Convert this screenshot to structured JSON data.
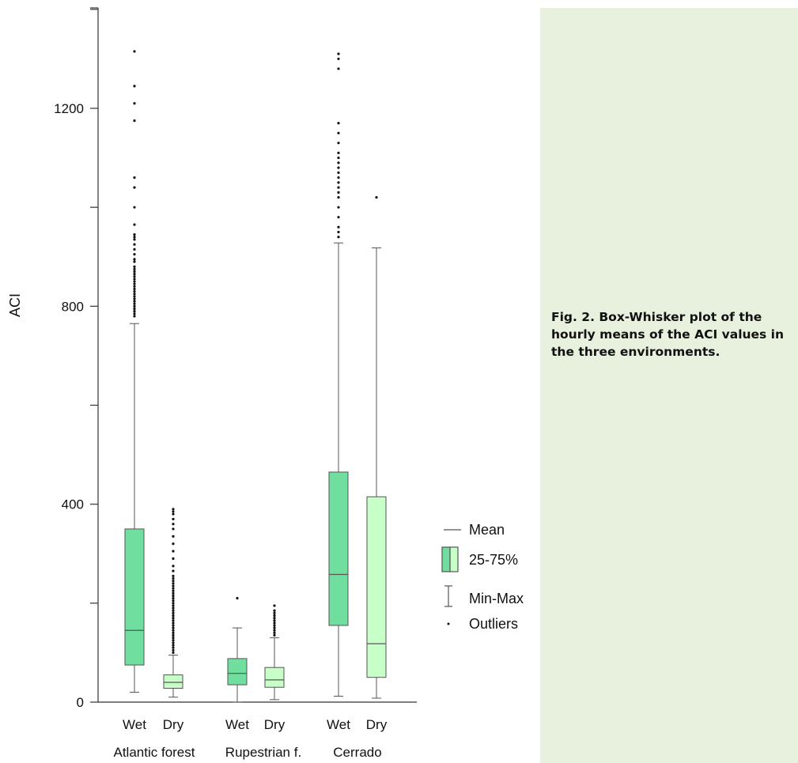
{
  "caption": "Fig. 2. Box-Whisker plot of the hourly means of the ACI values in the three environments.",
  "chart_data": {
    "type": "box",
    "ylabel": "ACI",
    "ylim": [
      0,
      1400
    ],
    "yticks": [
      0,
      400,
      800,
      1200
    ],
    "groups": [
      "Atlantic forest",
      "Rupestrian f.",
      "Cerrado"
    ],
    "season_labels": [
      "Wet",
      "Dry",
      "Wet",
      "Dry",
      "Wet",
      "Dry"
    ],
    "colors": {
      "wet_fill": "#6fde9f",
      "dry_fill": "#c8ffc8",
      "stroke": "#555555",
      "outlier": "#111111"
    },
    "boxes": [
      {
        "group": "Atlantic forest",
        "season": "Wet",
        "min": 20,
        "q1": 75,
        "mean": 145,
        "q3": 350,
        "max": 765,
        "outliers": [
          780,
          785,
          790,
          795,
          800,
          805,
          810,
          815,
          820,
          825,
          830,
          835,
          840,
          845,
          850,
          855,
          860,
          865,
          870,
          875,
          880,
          890,
          895,
          905,
          915,
          925,
          935,
          940,
          945,
          965,
          1000,
          1040,
          1060,
          1175,
          1210,
          1245,
          1315
        ]
      },
      {
        "group": "Atlantic forest",
        "season": "Dry",
        "min": 10,
        "q1": 28,
        "mean": 40,
        "q3": 55,
        "max": 95,
        "outliers": [
          100,
          105,
          110,
          115,
          120,
          125,
          130,
          135,
          140,
          145,
          150,
          155,
          160,
          165,
          170,
          175,
          180,
          185,
          190,
          195,
          200,
          205,
          210,
          215,
          220,
          225,
          230,
          235,
          240,
          245,
          250,
          255,
          265,
          275,
          290,
          305,
          320,
          335,
          350,
          360,
          370,
          380,
          385,
          390
        ]
      },
      {
        "group": "Rupestrian f.",
        "season": "Wet",
        "min": 0,
        "q1": 35,
        "mean": 58,
        "q3": 88,
        "max": 150,
        "outliers": [
          210
        ]
      },
      {
        "group": "Rupestrian f.",
        "season": "Dry",
        "min": 5,
        "q1": 30,
        "mean": 45,
        "q3": 70,
        "max": 130,
        "outliers": [
          135,
          140,
          145,
          150,
          155,
          160,
          165,
          170,
          175,
          180,
          185,
          195
        ]
      },
      {
        "group": "Cerrado",
        "season": "Wet",
        "min": 12,
        "q1": 155,
        "mean": 258,
        "q3": 465,
        "max": 928,
        "outliers": [
          940,
          950,
          960,
          980,
          1000,
          1020,
          1030,
          1040,
          1050,
          1060,
          1070,
          1080,
          1090,
          1100,
          1110,
          1130,
          1150,
          1170,
          1280,
          1300,
          1310
        ]
      },
      {
        "group": "Cerrado",
        "season": "Dry",
        "min": 8,
        "q1": 50,
        "mean": 118,
        "q3": 415,
        "max": 918,
        "outliers": [
          1020
        ]
      }
    ],
    "legend": {
      "placement": "right",
      "items": [
        "Mean",
        "25-75%",
        "Min-Max",
        "Outliers"
      ]
    }
  }
}
